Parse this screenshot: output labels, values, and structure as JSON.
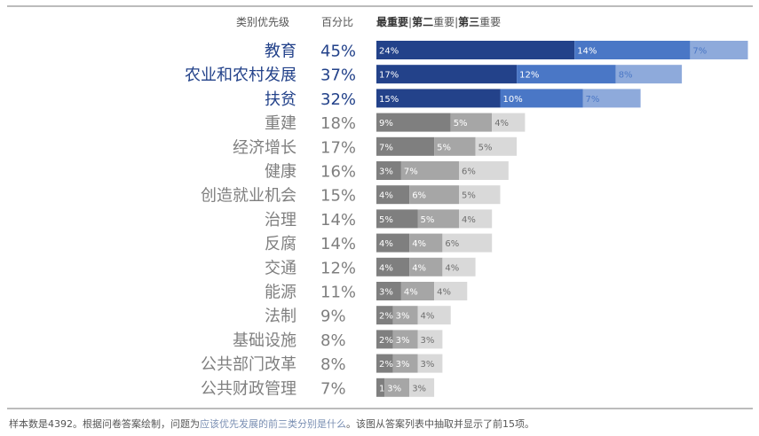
{
  "title": "",
  "header": {
    "category_label": "类别优先级",
    "percent_label": "百分比",
    "legend": [
      {
        "text": "最重要",
        "bold": true
      },
      {
        "text": "|",
        "bold": false
      },
      {
        "text": "第二",
        "bold": true
      },
      {
        "text": "重要",
        "bold": false
      },
      {
        "text": "|",
        "bold": false
      },
      {
        "text": "第三",
        "bold": true
      },
      {
        "text": "重要",
        "bold": false
      }
    ]
  },
  "colors": {
    "top3": [
      "#23428a",
      "#4a77c6",
      "#8eaadb"
    ],
    "others": [
      "#7f7f7f",
      "#a6a6a6",
      "#d9d9d9"
    ],
    "top3_label": "#23428a",
    "others_label": "#7f7f7f",
    "top3_seg_text": [
      "#ffffff",
      "#ffffff",
      "#4a77c6"
    ],
    "others_seg_text": [
      "#ffffff",
      "#ffffff",
      "#6f6f6f"
    ]
  },
  "chart_data": {
    "type": "bar",
    "orientation": "horizontal",
    "stacked": true,
    "categories": [
      "教育",
      "农业和农村发展",
      "扶贫",
      "重建",
      "经济增长",
      "健康",
      "创造就业机会",
      "治理",
      "反腐",
      "交通",
      "能源",
      "法制",
      "基础设施",
      "公共部门改革",
      "公共财政管理"
    ],
    "totals": [
      "45%",
      "37%",
      "32%",
      "18%",
      "17%",
      "16%",
      "15%",
      "14%",
      "14%",
      "12%",
      "11%",
      "9%",
      "8%",
      "8%",
      "7%"
    ],
    "highlighted_count": 3,
    "series": [
      {
        "name": "最重要",
        "values": [
          24,
          17,
          15,
          9,
          7,
          3,
          4,
          5,
          4,
          4,
          3,
          2,
          2,
          2,
          1
        ]
      },
      {
        "name": "第二重要",
        "values": [
          14,
          12,
          10,
          5,
          5,
          7,
          6,
          5,
          4,
          4,
          4,
          3,
          3,
          3,
          3
        ]
      },
      {
        "name": "第三重要",
        "values": [
          7,
          8,
          7,
          4,
          5,
          6,
          5,
          4,
          6,
          4,
          4,
          4,
          3,
          3,
          3
        ]
      }
    ],
    "value_suffix": "%"
  },
  "footnote": {
    "part1": "样本数是4392。根据问卷答案绘制，问题为",
    "part2": "应该优先发展的前三类分别是什么",
    "part3": "。该图从答案列表中抽取并显示了前15项。"
  }
}
